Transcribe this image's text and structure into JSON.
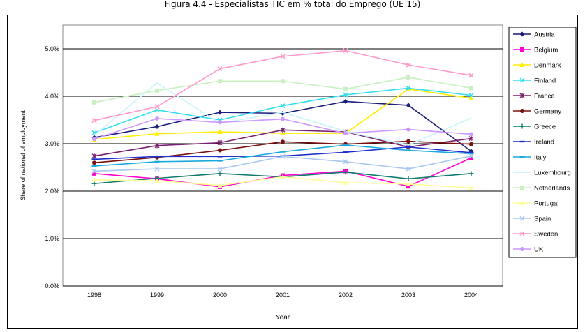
{
  "figure": {
    "title": "Figura 4.4 - Especialistas TIC em % total do Emprego (UE 15)"
  },
  "chart_data": {
    "type": "line",
    "title": "Figura 4.4 - Especialistas TIC em % total do Emprego (UE 15)",
    "xlabel": "Year",
    "ylabel": "Share of national of employment",
    "categories": [
      "1998",
      "1999",
      "2000",
      "2001",
      "2002",
      "2003",
      "2004"
    ],
    "yticks": [
      "0.0%",
      "1.0%",
      "2.0%",
      "3.0%",
      "4.0%",
      "5.0%"
    ],
    "ylim": [
      0,
      5.5
    ],
    "grid": "horizontal",
    "legend_position": "right",
    "series": [
      {
        "name": "Austria",
        "color": "#1c1c7a",
        "marker": "diamond",
        "values": [
          3.13,
          3.36,
          3.66,
          3.64,
          3.89,
          3.81,
          2.84
        ]
      },
      {
        "name": "Belgium",
        "color": "#ff00cc",
        "marker": "square",
        "values": [
          2.37,
          2.26,
          2.09,
          2.33,
          2.42,
          2.1,
          2.7
        ]
      },
      {
        "name": "Denmark",
        "color": "#ffee00",
        "marker": "triangle",
        "values": [
          3.09,
          3.21,
          3.25,
          3.22,
          3.22,
          4.15,
          3.96
        ]
      },
      {
        "name": "Finland",
        "color": "#33ddee",
        "marker": "x",
        "values": [
          3.23,
          3.71,
          3.5,
          3.8,
          4.03,
          4.17,
          4.02
        ]
      },
      {
        "name": "France",
        "color": "#7a1f6e",
        "marker": "star",
        "values": [
          2.74,
          2.96,
          3.02,
          3.29,
          3.25,
          2.93,
          3.11
        ]
      },
      {
        "name": "Germany",
        "color": "#7a1010",
        "marker": "circle",
        "values": [
          2.6,
          2.71,
          2.86,
          3.04,
          2.99,
          3.05,
          2.99
        ]
      },
      {
        "name": "Greece",
        "color": "#0f7a6e",
        "marker": "plus",
        "values": [
          2.16,
          2.27,
          2.37,
          2.3,
          2.4,
          2.26,
          2.37
        ]
      },
      {
        "name": "Ireland",
        "color": "#1e2fcc",
        "marker": "dash",
        "values": [
          2.67,
          2.73,
          2.73,
          2.74,
          2.82,
          2.93,
          2.81
        ]
      },
      {
        "name": "Italy",
        "color": "#1aa9dd",
        "marker": "dash",
        "values": [
          2.53,
          2.62,
          2.64,
          2.83,
          2.97,
          2.86,
          2.79
        ]
      },
      {
        "name": "Luxembourg",
        "color": "#c8f4fa",
        "marker": "none",
        "values": [
          3.18,
          4.28,
          3.43,
          3.66,
          3.26,
          2.97,
          3.54
        ]
      },
      {
        "name": "Netherlands",
        "color": "#c8f0c0",
        "marker": "square",
        "values": [
          3.87,
          4.12,
          4.32,
          4.32,
          4.15,
          4.4,
          4.17
        ]
      },
      {
        "name": "Portugal",
        "color": "#ffff99",
        "marker": "triangle",
        "values": [
          2.24,
          2.22,
          2.12,
          2.3,
          2.18,
          2.15,
          2.07
        ]
      },
      {
        "name": "Spain",
        "color": "#a8c8f0",
        "marker": "x",
        "values": [
          2.42,
          2.47,
          2.47,
          2.73,
          2.62,
          2.47,
          2.74
        ]
      },
      {
        "name": "Sweden",
        "color": "#ff99cc",
        "marker": "x",
        "values": [
          3.49,
          3.78,
          4.58,
          4.84,
          4.96,
          4.66,
          4.44
        ]
      },
      {
        "name": "UK",
        "color": "#cc99ff",
        "marker": "circle",
        "values": [
          3.1,
          3.53,
          3.45,
          3.52,
          3.22,
          3.3,
          3.2
        ]
      }
    ]
  }
}
